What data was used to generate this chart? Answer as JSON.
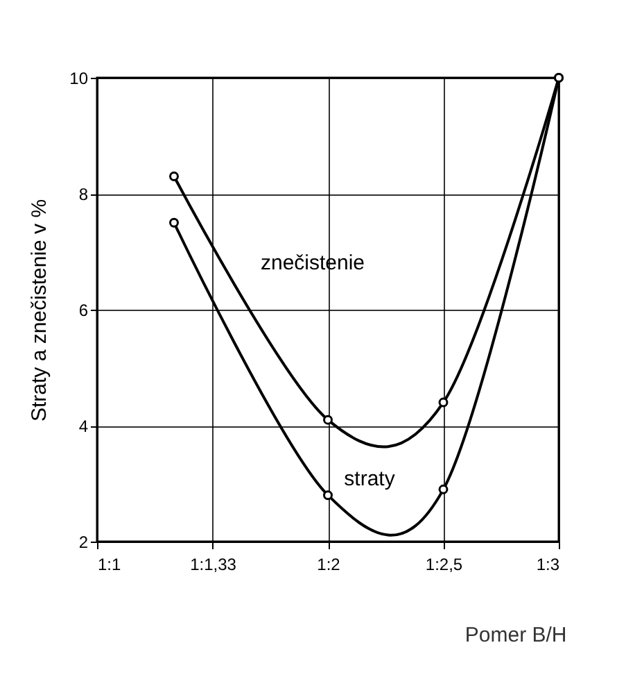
{
  "chart_data": {
    "type": "line",
    "xlabel": "Pomer B/H",
    "ylabel": "Straty a znečistenie v %",
    "categories": [
      "1:1",
      null,
      null,
      "1:1,33",
      null,
      null,
      "1:2",
      null,
      null,
      "1:2,5",
      null,
      null,
      "1:3"
    ],
    "ylim": [
      2,
      10
    ],
    "yticks": [
      2,
      4,
      6,
      8,
      10
    ],
    "series": [
      {
        "name": "znečistenie",
        "color": "#000000",
        "values": [
          null,
          null,
          8.3,
          null,
          null,
          null,
          4.1,
          null,
          null,
          4.4,
          null,
          null,
          10
        ]
      },
      {
        "name": "straty",
        "color": "#000000",
        "values": [
          null,
          null,
          7.5,
          null,
          null,
          null,
          2.8,
          null,
          null,
          2.9,
          null,
          null,
          10
        ]
      }
    ],
    "grid": true,
    "legend": false,
    "marker": "circle",
    "line_style": "solid"
  }
}
